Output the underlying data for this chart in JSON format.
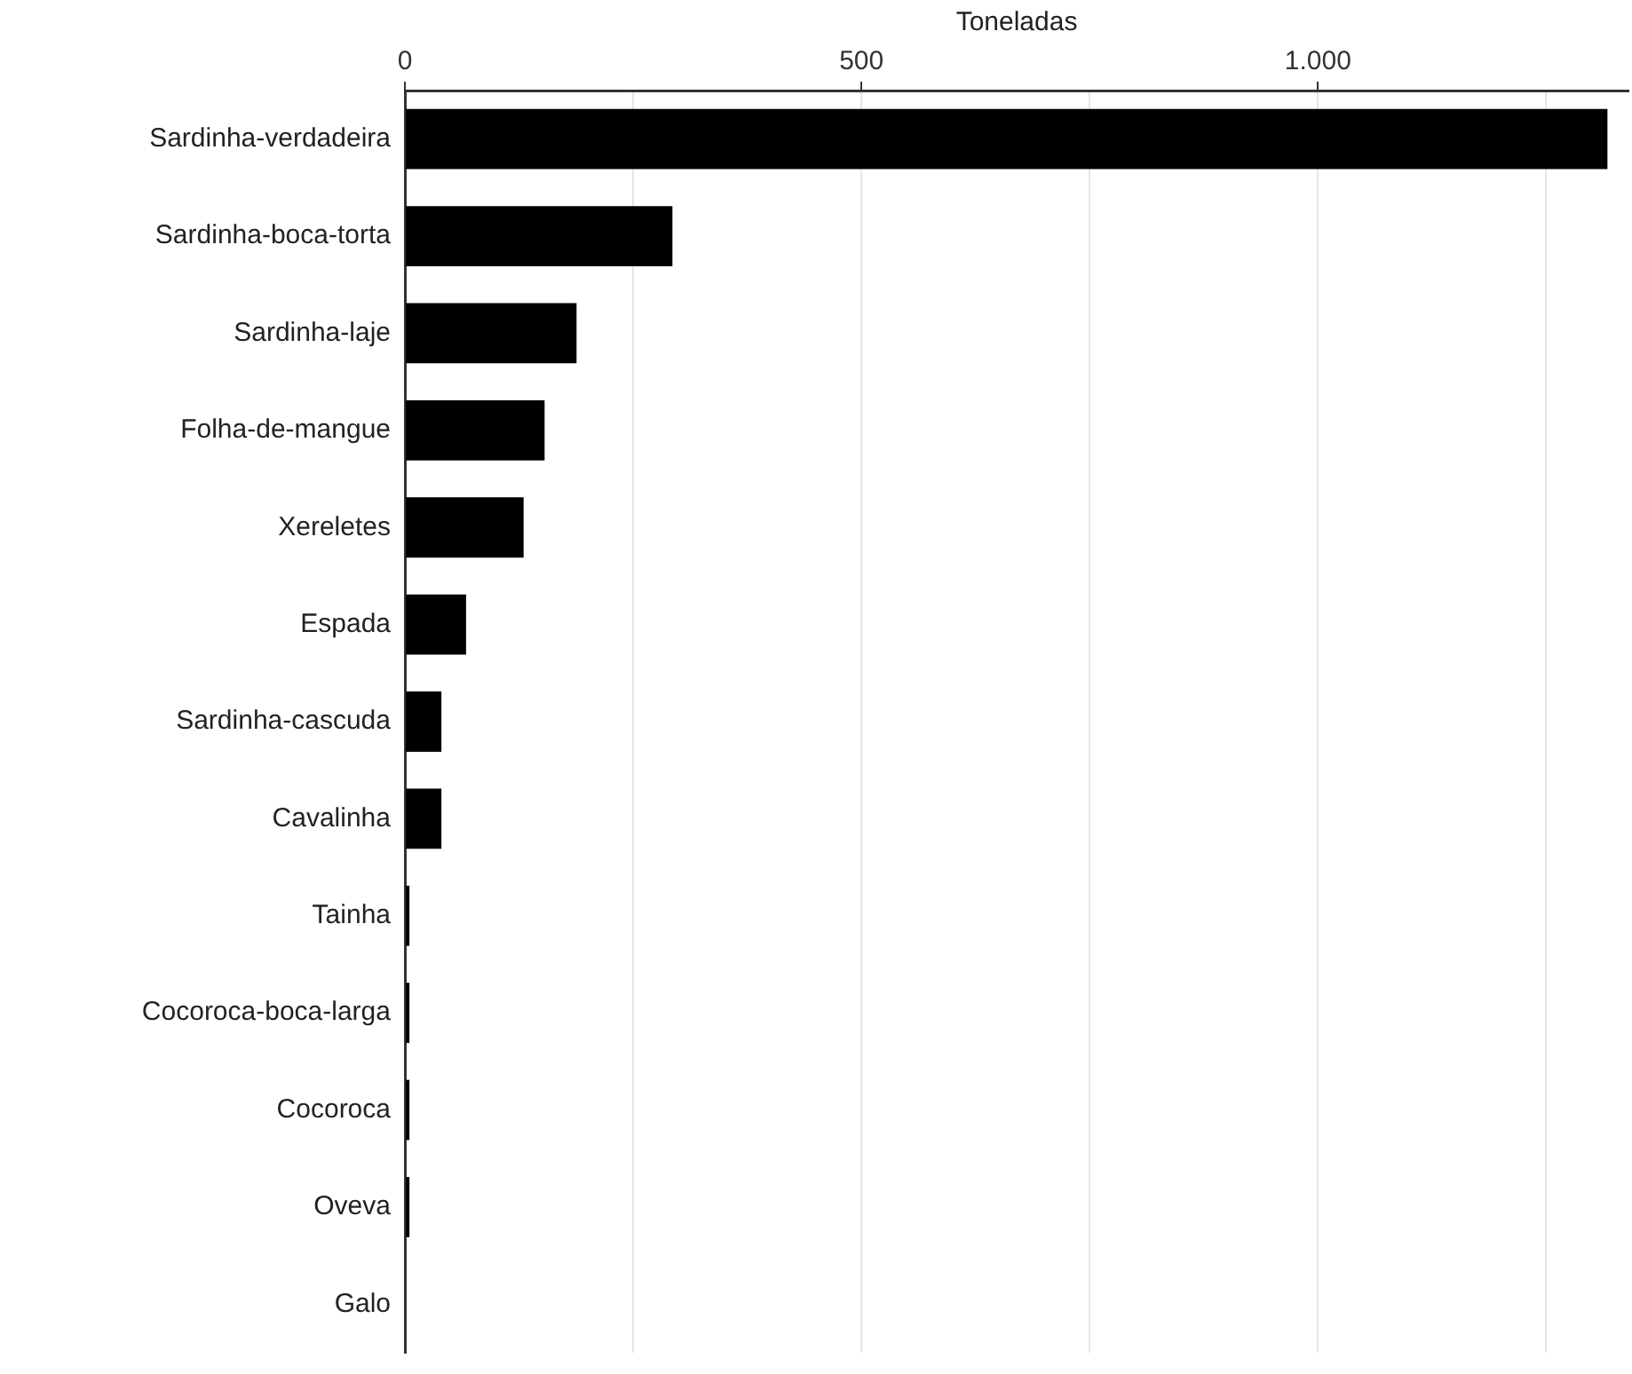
{
  "chart_data": {
    "type": "bar",
    "orientation": "horizontal",
    "xlabel": "Toneladas",
    "categories": [
      "Sardinha-verdadeira",
      "Sardinha-boca-torta",
      "Sardinha-laje",
      "Folha-de-mangue",
      "Xereletes",
      "Espada",
      "Sardinha-cascuda",
      "Cavalinha",
      "Tainha",
      "Cocoroca-boca-larga",
      "Cocoroca",
      "Oveva",
      "Galo"
    ],
    "values": [
      1317,
      293,
      188,
      153,
      130,
      67,
      40,
      40,
      5,
      5,
      5,
      5,
      1
    ],
    "color": "#000000",
    "xlim": [
      0,
      1340
    ],
    "xticks": [
      0,
      {
        "value": 250,
        "label": null
      },
      500,
      {
        "value": 750,
        "label": null
      },
      {
        "value": 1000,
        "label": "1.000"
      },
      {
        "value": 1250,
        "label": null
      }
    ],
    "grid": "x"
  }
}
